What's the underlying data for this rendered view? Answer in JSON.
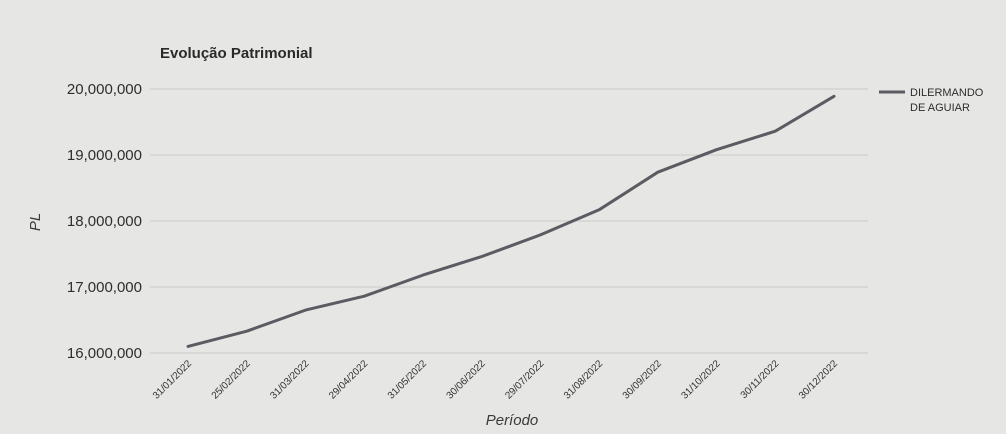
{
  "chart_data": {
    "type": "line",
    "title": "Evolução Patrimonial",
    "xlabel": "Período",
    "ylabel": "PL",
    "categories": [
      "31/01/2022",
      "25/02/2022",
      "31/03/2022",
      "29/04/2022",
      "31/05/2022",
      "30/06/2022",
      "29/07/2022",
      "31/08/2022",
      "30/09/2022",
      "31/10/2022",
      "30/11/2022",
      "30/12/2022"
    ],
    "series": [
      {
        "name": "DILERMANDO DE AGUIAR",
        "values": [
          16100000,
          16330000,
          16650000,
          16860000,
          17180000,
          17460000,
          17790000,
          18170000,
          18740000,
          19080000,
          19360000,
          19890000
        ],
        "color": "#5b5b62"
      }
    ],
    "ylim": [
      16000000,
      20000000
    ],
    "yticks": [
      "16,000,000",
      "17,000,000",
      "18,000,000",
      "19,000,000",
      "20,000,000"
    ],
    "grid": true,
    "legend_position": "top-right",
    "legend_lines": [
      "DILERMANDO",
      "DE AGUIAR"
    ]
  }
}
